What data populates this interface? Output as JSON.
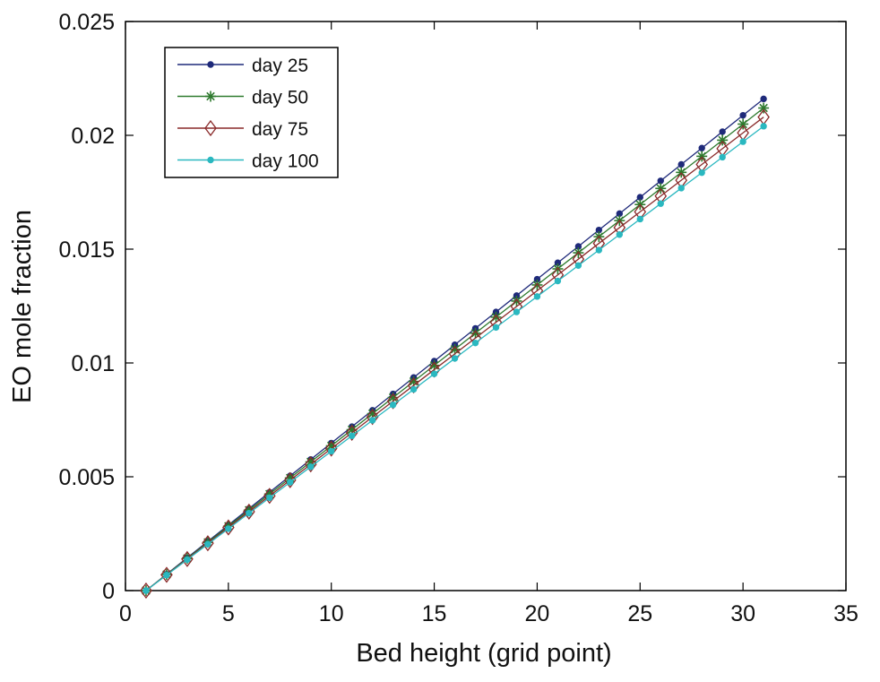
{
  "chart_data": {
    "type": "line",
    "xlabel": "Bed height (grid point)",
    "ylabel": "EO mole fraction",
    "xlim": [
      0,
      35
    ],
    "ylim": [
      0,
      0.025
    ],
    "xticks": [
      0,
      5,
      10,
      15,
      20,
      25,
      30,
      35
    ],
    "xtick_labels": [
      "0",
      "5",
      "10",
      "15",
      "20",
      "25",
      "30",
      "35"
    ],
    "yticks": [
      0,
      0.005,
      0.01,
      0.015,
      0.02,
      0.025
    ],
    "ytick_labels": [
      "0",
      "0.005",
      "0.01",
      "0.015",
      "0.02",
      "0.025"
    ],
    "grid": false,
    "legend_position": "top-left",
    "x": [
      1,
      2,
      3,
      4,
      5,
      6,
      7,
      8,
      9,
      10,
      11,
      12,
      13,
      14,
      15,
      16,
      17,
      18,
      19,
      20,
      21,
      22,
      23,
      24,
      25,
      26,
      27,
      28,
      29,
      30,
      31
    ],
    "series": [
      {
        "name": "day 25",
        "color": "#1f2a7a",
        "marker": "dot",
        "values": [
          0,
          0.00072,
          0.00144,
          0.00216,
          0.00288,
          0.0036,
          0.00432,
          0.00504,
          0.00576,
          0.00648,
          0.0072,
          0.00792,
          0.00864,
          0.00936,
          0.01008,
          0.0108,
          0.01152,
          0.01224,
          0.01296,
          0.01368,
          0.0144,
          0.01512,
          0.01584,
          0.01656,
          0.01728,
          0.018,
          0.01872,
          0.01944,
          0.02016,
          0.02088,
          0.0216
        ]
      },
      {
        "name": "day 50",
        "color": "#2e7a2e",
        "marker": "asterisk",
        "values": [
          0,
          0.000707,
          0.001413,
          0.00212,
          0.002827,
          0.003533,
          0.00424,
          0.004947,
          0.005653,
          0.00636,
          0.007067,
          0.007773,
          0.00848,
          0.009187,
          0.009893,
          0.0106,
          0.011307,
          0.012013,
          0.01272,
          0.013427,
          0.014133,
          0.01484,
          0.015547,
          0.016253,
          0.01696,
          0.017667,
          0.018373,
          0.01908,
          0.019787,
          0.020493,
          0.0212
        ]
      },
      {
        "name": "day 75",
        "color": "#8a2a2a",
        "marker": "diamond",
        "values": [
          0,
          0.000693,
          0.001387,
          0.00208,
          0.002773,
          0.003467,
          0.00416,
          0.004853,
          0.005547,
          0.00624,
          0.006933,
          0.007627,
          0.00832,
          0.009013,
          0.009707,
          0.0104,
          0.011093,
          0.011787,
          0.01248,
          0.013173,
          0.013867,
          0.01456,
          0.015253,
          0.015947,
          0.01664,
          0.017333,
          0.018027,
          0.01872,
          0.019413,
          0.020107,
          0.0208
        ]
      },
      {
        "name": "day 100",
        "color": "#2ab8c0",
        "marker": "dot",
        "values": [
          0,
          0.00068,
          0.00136,
          0.00204,
          0.00272,
          0.0034,
          0.00408,
          0.00476,
          0.00544,
          0.00612,
          0.0068,
          0.00748,
          0.00816,
          0.00884,
          0.00952,
          0.0102,
          0.01088,
          0.01156,
          0.01224,
          0.01292,
          0.0136,
          0.01428,
          0.01496,
          0.01564,
          0.01632,
          0.017,
          0.01768,
          0.01836,
          0.01904,
          0.01972,
          0.0204
        ]
      }
    ]
  }
}
